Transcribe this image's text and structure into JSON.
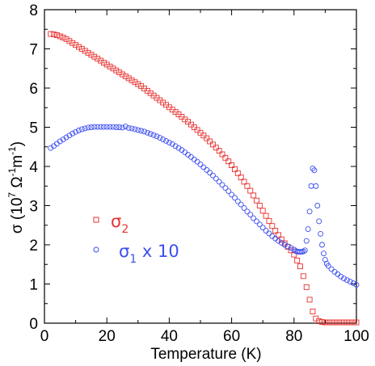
{
  "chart_data": {
    "type": "scatter",
    "xlabel": "Temperature (K)",
    "ylabel_parts": {
      "sigma": "σ",
      "open": " (10",
      "exp7": "7",
      "space1": " Ω",
      "expm1a": "-1",
      "m": "m",
      "expm1b": "-1",
      "close": ")"
    },
    "xlim": [
      0,
      100
    ],
    "ylim": [
      0,
      8
    ],
    "x_ticks": [
      0,
      20,
      40,
      60,
      80,
      100
    ],
    "y_ticks": [
      0,
      1,
      2,
      3,
      4,
      5,
      6,
      7,
      8
    ],
    "grid": false,
    "legend_position": "lower-left",
    "series": [
      {
        "name": "σ2",
        "legend_main": "σ",
        "legend_sub": "2",
        "legend_suffix": "",
        "marker": "square",
        "color": "#e8312f",
        "points": [
          [
            2,
            7.38
          ],
          [
            3,
            7.37
          ],
          [
            4,
            7.35
          ],
          [
            5,
            7.32
          ],
          [
            6,
            7.29
          ],
          [
            7,
            7.25
          ],
          [
            8,
            7.2
          ],
          [
            9,
            7.15
          ],
          [
            10,
            7.1
          ],
          [
            11,
            7.05
          ],
          [
            12,
            7.0
          ],
          [
            13,
            6.95
          ],
          [
            14,
            6.9
          ],
          [
            15,
            6.85
          ],
          [
            16,
            6.8
          ],
          [
            17,
            6.75
          ],
          [
            18,
            6.7
          ],
          [
            19,
            6.65
          ],
          [
            20,
            6.6
          ],
          [
            21,
            6.55
          ],
          [
            22,
            6.5
          ],
          [
            23,
            6.45
          ],
          [
            24,
            6.4
          ],
          [
            25,
            6.35
          ],
          [
            26,
            6.3
          ],
          [
            27,
            6.25
          ],
          [
            28,
            6.2
          ],
          [
            29,
            6.15
          ],
          [
            30,
            6.1
          ],
          [
            31,
            6.05
          ],
          [
            32,
            5.99
          ],
          [
            33,
            5.93
          ],
          [
            34,
            5.87
          ],
          [
            35,
            5.81
          ],
          [
            36,
            5.75
          ],
          [
            37,
            5.69
          ],
          [
            38,
            5.63
          ],
          [
            39,
            5.57
          ],
          [
            40,
            5.51
          ],
          [
            41,
            5.45
          ],
          [
            42,
            5.39
          ],
          [
            43,
            5.33
          ],
          [
            44,
            5.27
          ],
          [
            45,
            5.2
          ],
          [
            46,
            5.14
          ],
          [
            47,
            5.07
          ],
          [
            48,
            5.0
          ],
          [
            49,
            4.93
          ],
          [
            50,
            4.86
          ],
          [
            51,
            4.79
          ],
          [
            52,
            4.72
          ],
          [
            53,
            4.64
          ],
          [
            54,
            4.56
          ],
          [
            55,
            4.48
          ],
          [
            56,
            4.4
          ],
          [
            57,
            4.31
          ],
          [
            58,
            4.22
          ],
          [
            59,
            4.13
          ],
          [
            60,
            4.03
          ],
          [
            61,
            3.93
          ],
          [
            62,
            3.83
          ],
          [
            63,
            3.72
          ],
          [
            64,
            3.61
          ],
          [
            65,
            3.5
          ],
          [
            66,
            3.38
          ],
          [
            67,
            3.26
          ],
          [
            68,
            3.13
          ],
          [
            69,
            3.0
          ],
          [
            70,
            2.87
          ],
          [
            71,
            2.74
          ],
          [
            72,
            2.61
          ],
          [
            73,
            2.48
          ],
          [
            74,
            2.36
          ],
          [
            75,
            2.25
          ],
          [
            76,
            2.14
          ],
          [
            77,
            2.04
          ],
          [
            78,
            1.95
          ],
          [
            79,
            1.86
          ],
          [
            80,
            1.75
          ],
          [
            81,
            1.6
          ],
          [
            82,
            1.45
          ],
          [
            83,
            1.2
          ],
          [
            84,
            0.92
          ],
          [
            85,
            0.6
          ],
          [
            86,
            0.3
          ],
          [
            87,
            0.12
          ],
          [
            88,
            0.05
          ],
          [
            89,
            0.03
          ],
          [
            90,
            0.02
          ],
          [
            91,
            0.02
          ],
          [
            92,
            0.02
          ],
          [
            93,
            0.02
          ],
          [
            94,
            0.02
          ],
          [
            95,
            0.02
          ],
          [
            96,
            0.02
          ],
          [
            97,
            0.02
          ],
          [
            98,
            0.02
          ],
          [
            99,
            0.02
          ],
          [
            100,
            0.02
          ]
        ]
      },
      {
        "name": "σ1 x 10",
        "legend_main": "σ",
        "legend_sub": "1",
        "legend_suffix": " x 10",
        "marker": "circle",
        "color": "#3d4ef0",
        "points": [
          [
            2,
            4.47
          ],
          [
            3,
            4.52
          ],
          [
            4,
            4.58
          ],
          [
            5,
            4.64
          ],
          [
            6,
            4.69
          ],
          [
            7,
            4.74
          ],
          [
            8,
            4.79
          ],
          [
            9,
            4.84
          ],
          [
            10,
            4.88
          ],
          [
            11,
            4.92
          ],
          [
            12,
            4.95
          ],
          [
            13,
            4.97
          ],
          [
            14,
            4.99
          ],
          [
            15,
            5.0
          ],
          [
            16,
            5.01
          ],
          [
            17,
            5.01
          ],
          [
            18,
            5.01
          ],
          [
            19,
            5.01
          ],
          [
            20,
            5.01
          ],
          [
            21,
            5.01
          ],
          [
            22,
            5.01
          ],
          [
            23,
            5.0
          ],
          [
            24,
            5.0
          ],
          [
            25,
            4.99
          ],
          [
            26,
            5.02
          ],
          [
            27,
            4.98
          ],
          [
            28,
            4.97
          ],
          [
            29,
            4.95
          ],
          [
            30,
            4.93
          ],
          [
            31,
            4.91
          ],
          [
            32,
            4.89
          ],
          [
            33,
            4.86
          ],
          [
            34,
            4.83
          ],
          [
            35,
            4.8
          ],
          [
            36,
            4.77
          ],
          [
            37,
            4.73
          ],
          [
            38,
            4.69
          ],
          [
            39,
            4.65
          ],
          [
            40,
            4.61
          ],
          [
            41,
            4.57
          ],
          [
            42,
            4.52
          ],
          [
            43,
            4.47
          ],
          [
            44,
            4.42
          ],
          [
            45,
            4.36
          ],
          [
            46,
            4.3
          ],
          [
            47,
            4.24
          ],
          [
            48,
            4.18
          ],
          [
            49,
            4.12
          ],
          [
            50,
            4.05
          ],
          [
            51,
            3.98
          ],
          [
            52,
            3.91
          ],
          [
            53,
            3.84
          ],
          [
            54,
            3.77
          ],
          [
            55,
            3.69
          ],
          [
            56,
            3.61
          ],
          [
            57,
            3.53
          ],
          [
            58,
            3.45
          ],
          [
            59,
            3.37
          ],
          [
            60,
            3.28
          ],
          [
            61,
            3.2
          ],
          [
            62,
            3.11
          ],
          [
            63,
            3.03
          ],
          [
            64,
            2.94
          ],
          [
            65,
            2.85
          ],
          [
            66,
            2.77
          ],
          [
            67,
            2.68
          ],
          [
            68,
            2.6
          ],
          [
            69,
            2.52
          ],
          [
            70,
            2.44
          ],
          [
            71,
            2.36
          ],
          [
            72,
            2.29
          ],
          [
            73,
            2.22
          ],
          [
            74,
            2.16
          ],
          [
            75,
            2.1
          ],
          [
            76,
            2.05
          ],
          [
            77,
            2.0
          ],
          [
            78,
            1.96
          ],
          [
            79,
            1.92
          ],
          [
            80,
            1.88
          ],
          [
            80.5,
            1.84
          ],
          [
            81,
            1.83
          ],
          [
            81.5,
            1.82
          ],
          [
            82,
            1.82
          ],
          [
            82.5,
            1.82
          ],
          [
            83,
            1.83
          ],
          [
            83.5,
            1.86
          ],
          [
            84,
            2.1
          ],
          [
            84.5,
            2.4
          ],
          [
            85,
            2.85
          ],
          [
            85.5,
            3.5
          ],
          [
            86,
            3.95
          ],
          [
            86.5,
            3.9
          ],
          [
            87,
            3.5
          ],
          [
            87.5,
            3.0
          ],
          [
            88,
            2.6
          ],
          [
            88.5,
            2.28
          ],
          [
            89,
            2.0
          ],
          [
            89.5,
            1.78
          ],
          [
            90,
            1.62
          ],
          [
            90.5,
            1.52
          ],
          [
            91,
            1.46
          ],
          [
            92,
            1.38
          ],
          [
            93,
            1.31
          ],
          [
            94,
            1.25
          ],
          [
            95,
            1.19
          ],
          [
            96,
            1.14
          ],
          [
            97,
            1.1
          ],
          [
            98,
            1.06
          ],
          [
            99,
            1.02
          ],
          [
            100,
            0.98
          ]
        ]
      }
    ]
  }
}
